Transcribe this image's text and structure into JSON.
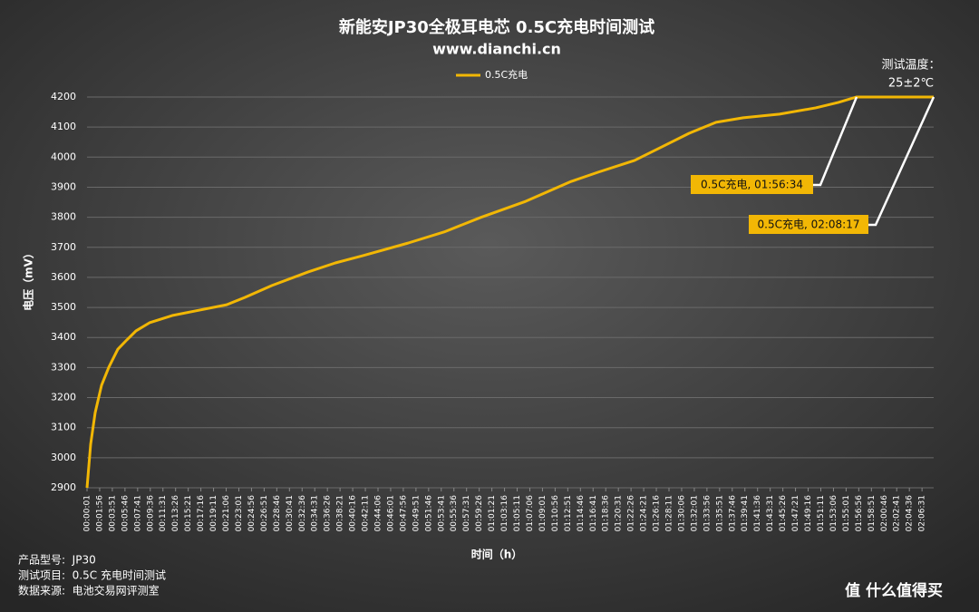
{
  "chart_data": {
    "type": "line",
    "title": "新能安JP30全极耳电芯 0.5C充电时间测试",
    "subtitle": "www.dianchi.cn",
    "x_label": "时间（h）",
    "y_label": "电压（mV）",
    "series": [
      {
        "name": "0.5C充电",
        "color": "#f2b705",
        "x": [
          1,
          34,
          75,
          133,
          199,
          281,
          363,
          446,
          569,
          775,
          981,
          1270,
          1434,
          1682,
          2011,
          2258,
          2506,
          2918,
          3247,
          3577,
          3989,
          4401,
          4648,
          4978,
          5225,
          5472,
          5719,
          5966,
          6296,
          6625,
          6831,
          6994,
          7697
        ],
        "values": [
          2900,
          3045,
          3150,
          3241,
          3301,
          3361,
          3392,
          3422,
          3449,
          3473,
          3488,
          3509,
          3533,
          3573,
          3618,
          3648,
          3672,
          3714,
          3751,
          3799,
          3853,
          3919,
          3950,
          3989,
          4034,
          4079,
          4116,
          4131,
          4143,
          4164,
          4182,
          4200,
          4200
        ]
      }
    ],
    "xlim": [
      1,
      7697
    ],
    "ylim": [
      2900,
      4200
    ],
    "yticks": [
      2900,
      3000,
      3100,
      3200,
      3300,
      3400,
      3500,
      3600,
      3700,
      3800,
      3900,
      4000,
      4100,
      4200
    ],
    "xticks": [
      {
        "value": 1,
        "label": "00:00:01"
      },
      {
        "value": 116,
        "label": "00:01:56"
      },
      {
        "value": 231,
        "label": "00:03:51"
      },
      {
        "value": 346,
        "label": "00:05:46"
      },
      {
        "value": 461,
        "label": "00:07:41"
      },
      {
        "value": 576,
        "label": "00:09:36"
      },
      {
        "value": 691,
        "label": "00:11:31"
      },
      {
        "value": 806,
        "label": "00:13:26"
      },
      {
        "value": 921,
        "label": "00:15:21"
      },
      {
        "value": 1036,
        "label": "00:17:16"
      },
      {
        "value": 1151,
        "label": "00:19:11"
      },
      {
        "value": 1266,
        "label": "00:21:06"
      },
      {
        "value": 1381,
        "label": "00:23:01"
      },
      {
        "value": 1496,
        "label": "00:24:56"
      },
      {
        "value": 1611,
        "label": "00:26:51"
      },
      {
        "value": 1726,
        "label": "00:28:46"
      },
      {
        "value": 1841,
        "label": "00:30:41"
      },
      {
        "value": 1956,
        "label": "00:32:36"
      },
      {
        "value": 2071,
        "label": "00:34:31"
      },
      {
        "value": 2186,
        "label": "00:36:26"
      },
      {
        "value": 2301,
        "label": "00:38:21"
      },
      {
        "value": 2416,
        "label": "00:40:16"
      },
      {
        "value": 2531,
        "label": "00:42:11"
      },
      {
        "value": 2646,
        "label": "00:44:06"
      },
      {
        "value": 2761,
        "label": "00:46:01"
      },
      {
        "value": 2876,
        "label": "00:47:56"
      },
      {
        "value": 2991,
        "label": "00:49:51"
      },
      {
        "value": 3106,
        "label": "00:51:46"
      },
      {
        "value": 3221,
        "label": "00:53:41"
      },
      {
        "value": 3336,
        "label": "00:55:36"
      },
      {
        "value": 3451,
        "label": "00:57:31"
      },
      {
        "value": 3566,
        "label": "00:59:26"
      },
      {
        "value": 3681,
        "label": "01:01:21"
      },
      {
        "value": 3796,
        "label": "01:03:16"
      },
      {
        "value": 3911,
        "label": "01:05:11"
      },
      {
        "value": 4026,
        "label": "01:07:06"
      },
      {
        "value": 4141,
        "label": "01:09:01"
      },
      {
        "value": 4256,
        "label": "01:10:56"
      },
      {
        "value": 4371,
        "label": "01:12:51"
      },
      {
        "value": 4486,
        "label": "01:14:46"
      },
      {
        "value": 4601,
        "label": "01:16:41"
      },
      {
        "value": 4716,
        "label": "01:18:36"
      },
      {
        "value": 4831,
        "label": "01:20:31"
      },
      {
        "value": 4946,
        "label": "01:22:26"
      },
      {
        "value": 5061,
        "label": "01:24:21"
      },
      {
        "value": 5176,
        "label": "01:26:16"
      },
      {
        "value": 5291,
        "label": "01:28:11"
      },
      {
        "value": 5406,
        "label": "01:30:06"
      },
      {
        "value": 5521,
        "label": "01:32:01"
      },
      {
        "value": 5636,
        "label": "01:33:56"
      },
      {
        "value": 5751,
        "label": "01:35:51"
      },
      {
        "value": 5866,
        "label": "01:37:46"
      },
      {
        "value": 5981,
        "label": "01:39:41"
      },
      {
        "value": 6096,
        "label": "01:41:36"
      },
      {
        "value": 6211,
        "label": "01:43:31"
      },
      {
        "value": 6326,
        "label": "01:45:26"
      },
      {
        "value": 6441,
        "label": "01:47:21"
      },
      {
        "value": 6556,
        "label": "01:49:16"
      },
      {
        "value": 6671,
        "label": "01:51:11"
      },
      {
        "value": 6786,
        "label": "01:53:06"
      },
      {
        "value": 6901,
        "label": "01:55:01"
      },
      {
        "value": 7016,
        "label": "01:56:56"
      },
      {
        "value": 7131,
        "label": "01:58:51"
      },
      {
        "value": 7246,
        "label": "02:00:46"
      },
      {
        "value": 7361,
        "label": "02:02:41"
      },
      {
        "value": 7476,
        "label": "02:04:36"
      },
      {
        "value": 7591,
        "label": "02:06:31"
      }
    ],
    "grid": true,
    "annotations": [
      "0.5C充电, 01:56:34",
      "0.5C充电, 02:08:17"
    ],
    "temperature_note": [
      "测试温度：",
      "25±2℃"
    ],
    "footer": [
      "产品型号:  JP30",
      "测试项目:  0.5C 充电时间测试",
      "数据来源:  电池交易网评测室"
    ],
    "watermark": "值 什么值得买"
  }
}
